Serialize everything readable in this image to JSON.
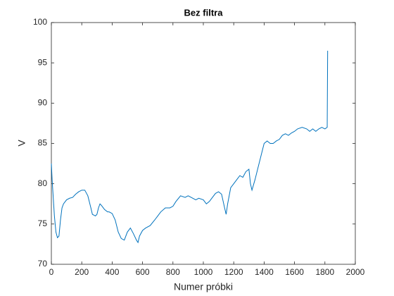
{
  "chart_data": {
    "type": "line",
    "title": "Bez filtra",
    "x_label": "Numer próbki",
    "y_label": "V",
    "x": [
      0,
      5,
      10,
      20,
      30,
      40,
      50,
      60,
      70,
      80,
      100,
      120,
      140,
      160,
      180,
      200,
      220,
      240,
      260,
      270,
      290,
      300,
      310,
      320,
      330,
      350,
      370,
      380,
      400,
      420,
      440,
      460,
      480,
      500,
      520,
      540,
      560,
      570,
      580,
      600,
      620,
      650,
      680,
      700,
      720,
      750,
      780,
      800,
      820,
      850,
      880,
      900,
      920,
      950,
      970,
      1000,
      1020,
      1040,
      1060,
      1080,
      1100,
      1120,
      1140,
      1150,
      1160,
      1180,
      1200,
      1220,
      1240,
      1260,
      1280,
      1300,
      1310,
      1320,
      1340,
      1360,
      1380,
      1400,
      1420,
      1440,
      1460,
      1480,
      1500,
      1520,
      1540,
      1560,
      1580,
      1600,
      1620,
      1650,
      1680,
      1700,
      1720,
      1740,
      1760,
      1780,
      1800,
      1815,
      1818
    ],
    "series": [
      {
        "name": "V",
        "color": "#0072bd",
        "values": [
          82.5,
          80.5,
          79,
          76,
          74,
          73.3,
          73.5,
          75.5,
          77,
          77.5,
          78,
          78.2,
          78.3,
          78.7,
          79,
          79.2,
          79.2,
          78.5,
          77,
          76.2,
          76,
          76.2,
          77,
          77.5,
          77.3,
          76.8,
          76.5,
          76.5,
          76.3,
          75.5,
          74,
          73.2,
          73,
          74,
          74.5,
          73.8,
          73,
          72.7,
          73.5,
          74.2,
          74.5,
          74.8,
          75.5,
          76,
          76.5,
          77,
          77,
          77.2,
          77.8,
          78.5,
          78.3,
          78.5,
          78.3,
          78,
          78.2,
          78,
          77.5,
          77.8,
          78.3,
          78.8,
          79,
          78.7,
          77,
          76.2,
          77.5,
          79.5,
          80,
          80.5,
          81,
          80.8,
          81.5,
          81.8,
          80,
          79.2,
          80.5,
          82,
          83.5,
          85,
          85.3,
          85,
          85,
          85.3,
          85.5,
          86,
          86.2,
          86,
          86.3,
          86.5,
          86.8,
          87,
          86.8,
          86.5,
          86.8,
          86.5,
          86.8,
          87,
          86.8,
          87,
          96.5
        ]
      }
    ],
    "xlim": [
      0,
      2000
    ],
    "xticks": [
      0,
      200,
      400,
      600,
      800,
      1000,
      1200,
      1400,
      1600,
      1800,
      2000
    ],
    "ylim": [
      70,
      100
    ],
    "yticks": [
      70,
      75,
      80,
      85,
      90,
      95,
      100
    ]
  }
}
